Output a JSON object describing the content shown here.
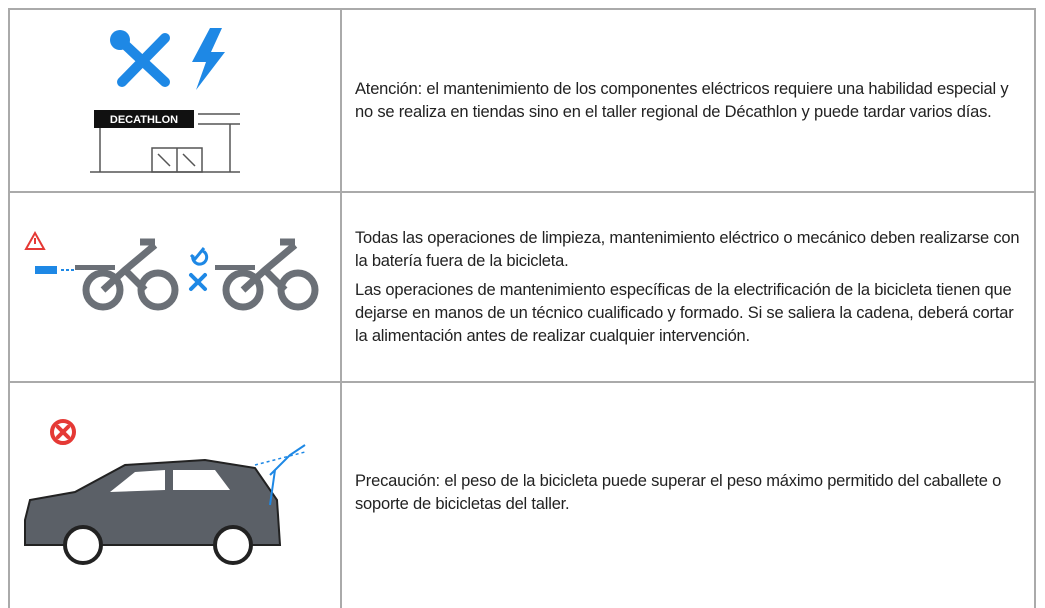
{
  "rows": [
    {
      "logo": "DECATHLON",
      "paragraphs": [
        "Atención: el mantenimiento de los componentes eléctricos requiere una habilidad especial y no se realiza en tiendas sino en el taller regional de Décathlon y puede tardar varios días."
      ]
    },
    {
      "paragraphs": [
        "Todas las operaciones de limpieza, mantenimiento eléctrico o mecánico deben realizarse con la batería fuera de la bicicleta.",
        "Las operaciones de mantenimiento específicas de la electrificación de la bicicleta tienen que dejarse en manos de un técnico cualificado y formado. Si se saliera la cadena, deberá cortar la alimentación antes de realizar cualquier intervención."
      ]
    },
    {
      "paragraphs": [
        "Precaución: el peso de la bicicleta puede superar el peso máximo permitido del caballete o soporte de bicicletas del taller."
      ]
    }
  ]
}
